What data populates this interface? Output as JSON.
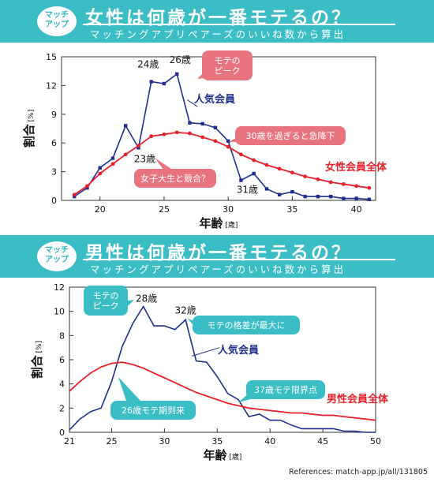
{
  "top": {
    "badge": "マッチ\nアップ",
    "title": "女性は何歳が一番モテるの？",
    "subtitle": "マッチングアプリペアーズのいいね数から算出"
  },
  "bottom": {
    "badge": "マッチ\nアップ",
    "title": "男性は何歳が一番モテるの？",
    "subtitle": "マッチングアプリペアーズのいいね数から算出"
  },
  "reference": "References: match-app.jp/all/131805",
  "colors": {
    "popular": "#1f2f8f",
    "all": "#e8202a",
    "banner": "#3bbdc6",
    "pink": "#e87480",
    "teal": "#3bbdc6"
  },
  "chart_data": [
    {
      "type": "line",
      "ylabel": "割合[%]",
      "xlabel": "年齢[歳]",
      "xlim": [
        17,
        41.5
      ],
      "ylim": [
        0,
        15
      ],
      "xticks": [
        20,
        25,
        30,
        35,
        40
      ],
      "yticks": [
        0,
        3,
        6,
        9,
        12,
        15
      ],
      "series": [
        {
          "name": "人気会員",
          "x": [
            18,
            19,
            20,
            21,
            22,
            23,
            24,
            25,
            26,
            27,
            28,
            29,
            30,
            31,
            32,
            33,
            34,
            35,
            36,
            37,
            38,
            39,
            40,
            41
          ],
          "values": [
            0.4,
            1.3,
            3.4,
            4.4,
            7.8,
            5.5,
            12.4,
            12.2,
            13.2,
            8.1,
            8.0,
            7.6,
            6.2,
            2.1,
            2.8,
            1.2,
            0.6,
            0.9,
            0.4,
            0.4,
            0.4,
            0.2,
            0.2,
            0.1
          ]
        },
        {
          "name": "女性会員全体",
          "x": [
            18,
            19,
            20,
            21,
            22,
            23,
            24,
            25,
            26,
            27,
            28,
            29,
            30,
            31,
            32,
            33,
            34,
            35,
            36,
            37,
            38,
            39,
            40,
            41
          ],
          "values": [
            0.6,
            1.5,
            2.8,
            3.8,
            4.8,
            5.7,
            6.7,
            6.9,
            7.1,
            7.0,
            6.6,
            6.2,
            5.6,
            4.8,
            4.2,
            3.7,
            3.3,
            2.9,
            2.5,
            2.2,
            1.9,
            1.7,
            1.5,
            1.3
          ]
        }
      ],
      "annotations": {
        "age24": "24歳",
        "age26": "26歳",
        "age23": "23歳",
        "age31": "31歳",
        "peak": "モテの\nピーク",
        "over30": "30歳を過ぎると急降下",
        "college": "女子大生と競合？",
        "popular_label": "人気会員",
        "all_label": "女性会員全体"
      }
    },
    {
      "type": "line",
      "ylabel": "割合[%]",
      "xlabel": "年齢[歳]",
      "xlim": [
        21,
        50
      ],
      "ylim": [
        0,
        12
      ],
      "xticks": [
        21,
        25,
        30,
        35,
        40,
        45,
        50
      ],
      "yticks": [
        0,
        2,
        4,
        6,
        8,
        10,
        12
      ],
      "series": [
        {
          "name": "人気会員",
          "x": [
            21,
            22,
            23,
            24,
            25,
            26,
            27,
            28,
            29,
            30,
            31,
            32,
            33,
            34,
            35,
            36,
            37,
            38,
            39,
            40,
            41,
            42,
            43,
            44,
            45,
            46,
            47,
            48,
            49,
            50
          ],
          "values": [
            0.2,
            1.1,
            1.7,
            2.0,
            4.2,
            7.1,
            9.0,
            10.4,
            8.8,
            8.8,
            8.5,
            9.3,
            5.9,
            5.8,
            4.6,
            3.2,
            2.7,
            1.3,
            1.5,
            1.0,
            1.0,
            0.6,
            0.3,
            0.3,
            0.3,
            0.3,
            0.1,
            0.1,
            0.0,
            0.0
          ]
        },
        {
          "name": "男性会員全体",
          "x": [
            21,
            22,
            23,
            24,
            25,
            26,
            27,
            28,
            29,
            30,
            31,
            32,
            33,
            34,
            35,
            36,
            37,
            38,
            39,
            40,
            41,
            42,
            43,
            44,
            45,
            46,
            47,
            48,
            49,
            50
          ],
          "values": [
            3.4,
            4.2,
            4.9,
            5.4,
            5.7,
            5.8,
            5.6,
            5.3,
            4.9,
            4.5,
            4.1,
            3.7,
            3.3,
            3.0,
            2.7,
            2.4,
            2.2,
            2.0,
            1.9,
            1.8,
            1.7,
            1.6,
            1.6,
            1.5,
            1.4,
            1.4,
            1.3,
            1.2,
            1.1,
            1.0
          ]
        }
      ],
      "annotations": {
        "age28": "28歳",
        "age32": "32歳",
        "peak": "モテの\nピーク",
        "gap": "モテの格差が最大に",
        "popular_label": "人気会員",
        "limit37": "37歳モテ限界点",
        "start26": "26歳モテ期到来",
        "all_label": "男性会員全体"
      }
    }
  ]
}
